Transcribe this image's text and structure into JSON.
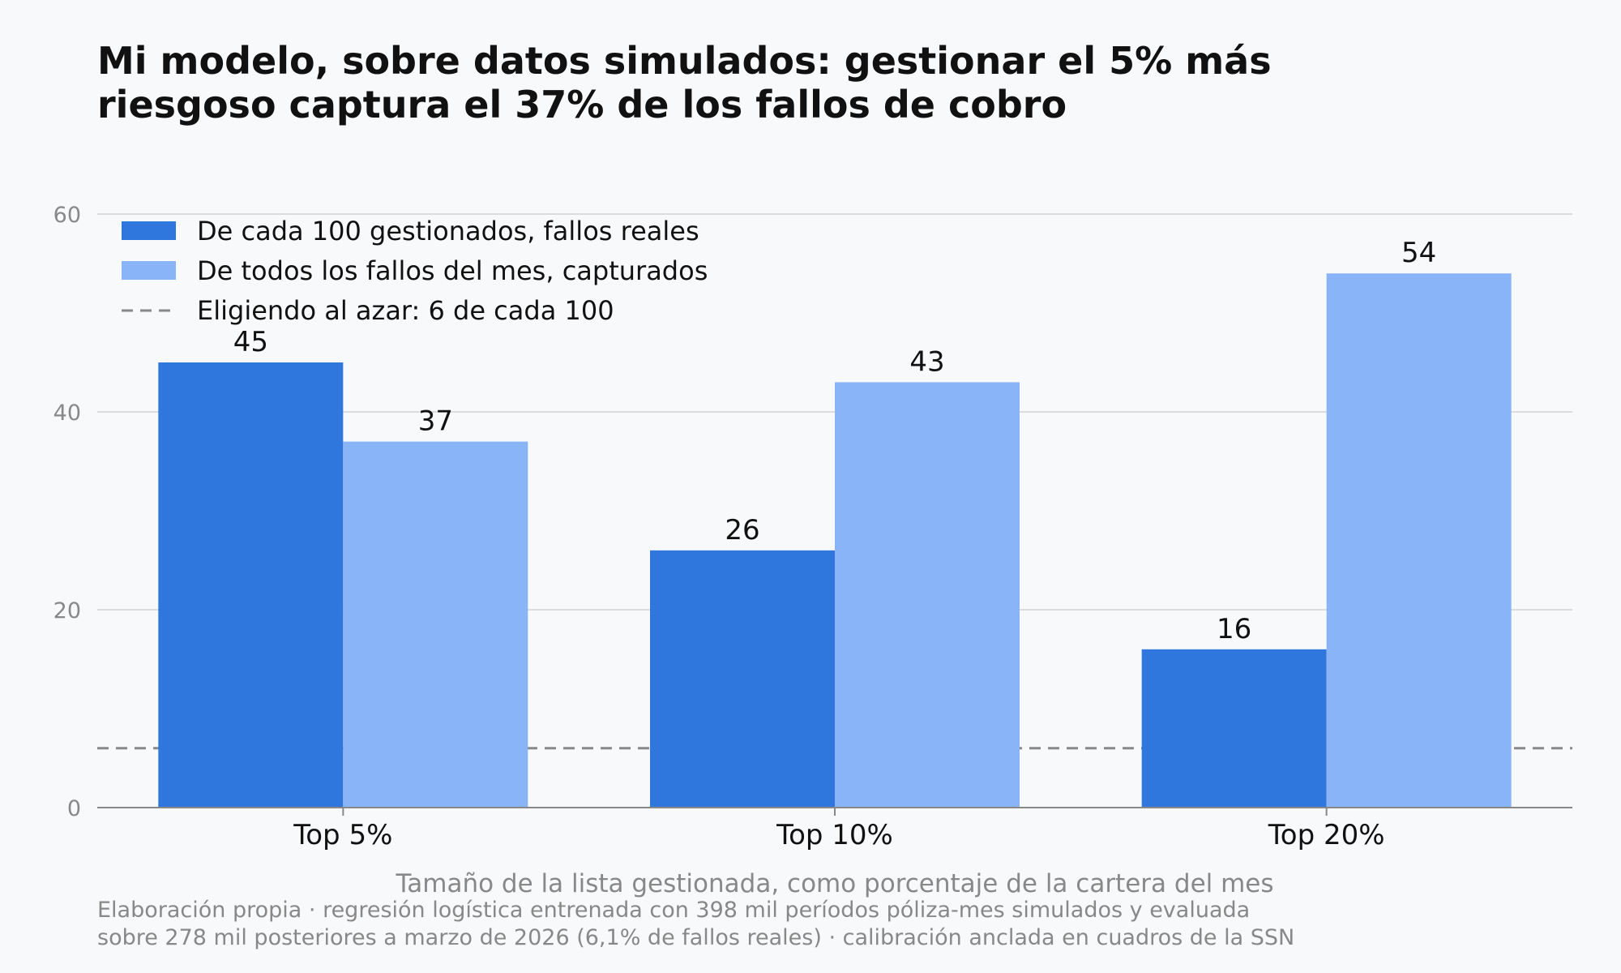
{
  "title_lines": [
    "Mi modelo, sobre datos simulados: gestionar el 5% más",
    "riesgoso captura el 37% de los fallos de cobro"
  ],
  "chart_data": {
    "type": "bar",
    "categories": [
      "Top 5%",
      "Top 10%",
      "Top 20%"
    ],
    "series": [
      {
        "name": "De cada 100 gestionados, fallos reales",
        "values": [
          45,
          26,
          16
        ],
        "labels": [
          "45",
          "26",
          "16"
        ],
        "color": "#3077dd"
      },
      {
        "name": "De todos los fallos del mes, capturados",
        "values": [
          37,
          43,
          54
        ],
        "labels": [
          "37",
          "43",
          "54"
        ],
        "color": "#8ab4f8"
      }
    ],
    "reference_line": {
      "name": "Eligiendo al azar: 6 de cada 100",
      "value": 6,
      "color": "#888888",
      "style": "dashed"
    },
    "xlabel": "Tamaño de la lista gestionada, como porcentaje de la cartera del mes",
    "ylabel": "",
    "ylim": [
      0,
      60
    ],
    "yticks": [
      0,
      20,
      40,
      60
    ],
    "grid": "horizontal",
    "legend_position": "top-left"
  },
  "footnote_lines": [
    "Elaboración propia · regresión logística entrenada con 398 mil períodos póliza-mes simulados y evaluada",
    "sobre 278 mil posteriores a marzo de 2026 (6,1% de fallos reales) · calibración anclada en cuadros de la SSN"
  ],
  "colors": {
    "background": "#f8f9fa",
    "grid": "#d0d3d6",
    "axis": "#888888",
    "muted_text": "#888888"
  }
}
